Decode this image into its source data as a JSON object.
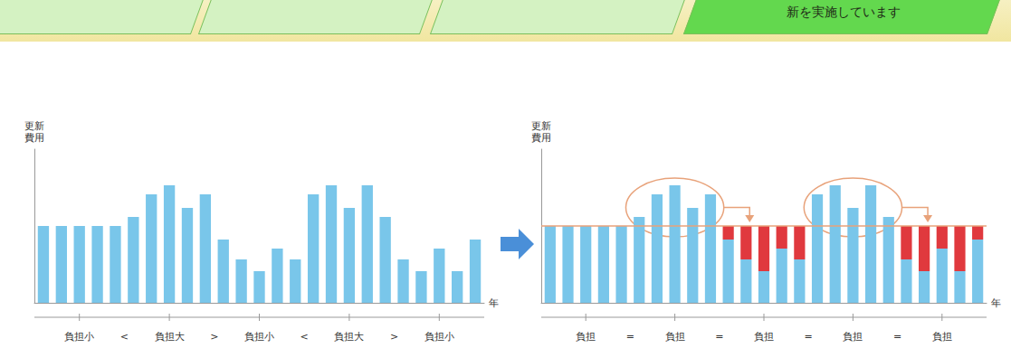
{
  "header": {
    "banner_text": "新を実施しています"
  },
  "chart_data": [
    {
      "type": "bar",
      "y_label": "更新費用",
      "x_label": "年",
      "categories": [
        null,
        null,
        null,
        null,
        null,
        null,
        null,
        null,
        null,
        null,
        null,
        null,
        null,
        null,
        null,
        null,
        null,
        null,
        null,
        null,
        null,
        null,
        null,
        null,
        null
      ],
      "values": [
        85,
        85,
        85,
        85,
        85,
        95,
        120,
        130,
        105,
        120,
        70,
        48,
        35,
        60,
        48,
        120,
        130,
        105,
        130,
        95,
        48,
        35,
        60,
        35,
        70
      ],
      "color": "#79c6ea",
      "ylim": [
        0,
        170
      ],
      "yticks": [],
      "grid": false,
      "tick_labels": false,
      "group_labels": [
        "負担小",
        "<",
        "負担大",
        ">",
        "負担小",
        "<",
        "負担大",
        ">",
        "負担小"
      ]
    },
    {
      "type": "bar",
      "stacked": true,
      "y_label": "更新費用",
      "x_label": "年",
      "categories": [
        null,
        null,
        null,
        null,
        null,
        null,
        null,
        null,
        null,
        null,
        null,
        null,
        null,
        null,
        null,
        null,
        null,
        null,
        null,
        null,
        null,
        null,
        null,
        null,
        null
      ],
      "series": [
        {
          "color": "#79c6ea",
          "values": [
            85,
            85,
            85,
            85,
            85,
            95,
            120,
            130,
            105,
            120,
            70,
            48,
            35,
            60,
            48,
            120,
            130,
            105,
            130,
            95,
            48,
            35,
            60,
            35,
            70
          ]
        },
        {
          "color": "#e0393e",
          "values": [
            null,
            null,
            null,
            null,
            null,
            null,
            null,
            null,
            null,
            null,
            15,
            37,
            50,
            25,
            37,
            null,
            null,
            null,
            null,
            null,
            37,
            50,
            25,
            50,
            15
          ]
        }
      ],
      "reference_line": 85,
      "ylim": [
        0,
        170
      ],
      "yticks": [],
      "grid": false,
      "tick_labels": false,
      "group_labels": [
        "負担",
        "=",
        "負担",
        "=",
        "負担",
        "=",
        "負担",
        "=",
        "負担"
      ]
    }
  ]
}
